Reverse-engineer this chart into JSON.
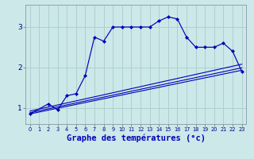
{
  "background_color": "#cce8e8",
  "line_color": "#0000bb",
  "grid_color": "#aacccc",
  "xlabel": "Graphe des températures (°c)",
  "xlabel_fontsize": 7.5,
  "ytick_vals": [
    1,
    2,
    3
  ],
  "xtick_vals": [
    0,
    1,
    2,
    3,
    4,
    5,
    6,
    7,
    8,
    9,
    10,
    11,
    12,
    13,
    14,
    15,
    16,
    17,
    18,
    19,
    20,
    21,
    22,
    23
  ],
  "xlim": [
    -0.5,
    23.5
  ],
  "ylim": [
    0.6,
    3.55
  ],
  "main_x": [
    0,
    2,
    3,
    4,
    5,
    6,
    7,
    8,
    9,
    10,
    11,
    12,
    13,
    14,
    15,
    16,
    17,
    18,
    19,
    20,
    21,
    22,
    23
  ],
  "main_y": [
    0.85,
    1.1,
    0.95,
    1.3,
    1.35,
    1.8,
    2.75,
    2.65,
    3.0,
    3.0,
    3.0,
    3.0,
    3.0,
    3.15,
    3.25,
    3.2,
    2.75,
    2.5,
    2.5,
    2.5,
    2.6,
    2.4,
    1.9
  ],
  "reg_lines": [
    {
      "x": [
        0,
        23
      ],
      "y": [
        0.85,
        1.93
      ]
    },
    {
      "x": [
        0,
        23
      ],
      "y": [
        0.88,
        1.99
      ]
    },
    {
      "x": [
        0,
        23
      ],
      "y": [
        0.92,
        2.08
      ]
    }
  ]
}
